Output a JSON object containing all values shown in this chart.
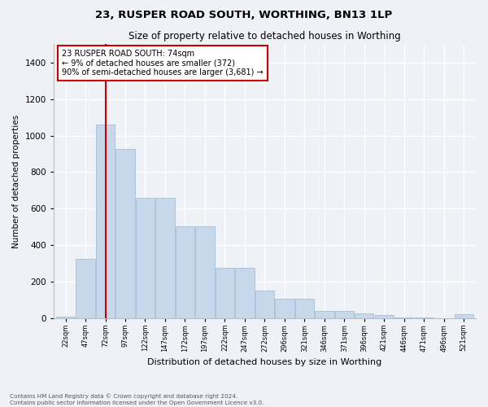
{
  "title": "23, RUSPER ROAD SOUTH, WORTHING, BN13 1LP",
  "subtitle": "Size of property relative to detached houses in Worthing",
  "xlabel": "Distribution of detached houses by size in Worthing",
  "ylabel": "Number of detached properties",
  "bar_color": "#c8d8eb",
  "bar_edge_color": "#9ab8d0",
  "background_color": "#eef2f7",
  "vline_color": "#cc0000",
  "vline_x": 2,
  "annotation_text": "23 RUSPER ROAD SOUTH: 74sqm\n← 9% of detached houses are smaller (372)\n90% of semi-detached houses are larger (3,681) →",
  "annotation_box_color": "white",
  "annotation_box_edge": "#cc0000",
  "categories": [
    "22sqm",
    "47sqm",
    "72sqm",
    "97sqm",
    "122sqm",
    "147sqm",
    "172sqm",
    "197sqm",
    "222sqm",
    "247sqm",
    "272sqm",
    "296sqm",
    "321sqm",
    "346sqm",
    "371sqm",
    "396sqm",
    "421sqm",
    "446sqm",
    "471sqm",
    "496sqm",
    "521sqm"
  ],
  "values": [
    10,
    325,
    1060,
    925,
    660,
    660,
    505,
    505,
    275,
    275,
    150,
    105,
    105,
    40,
    40,
    25,
    15,
    5,
    5,
    0,
    20
  ],
  "ylim": [
    0,
    1500
  ],
  "yticks": [
    0,
    200,
    400,
    600,
    800,
    1000,
    1200,
    1400
  ],
  "footnote1": "Contains HM Land Registry data © Crown copyright and database right 2024.",
  "footnote2": "Contains public sector information licensed under the Open Government Licence v3.0."
}
